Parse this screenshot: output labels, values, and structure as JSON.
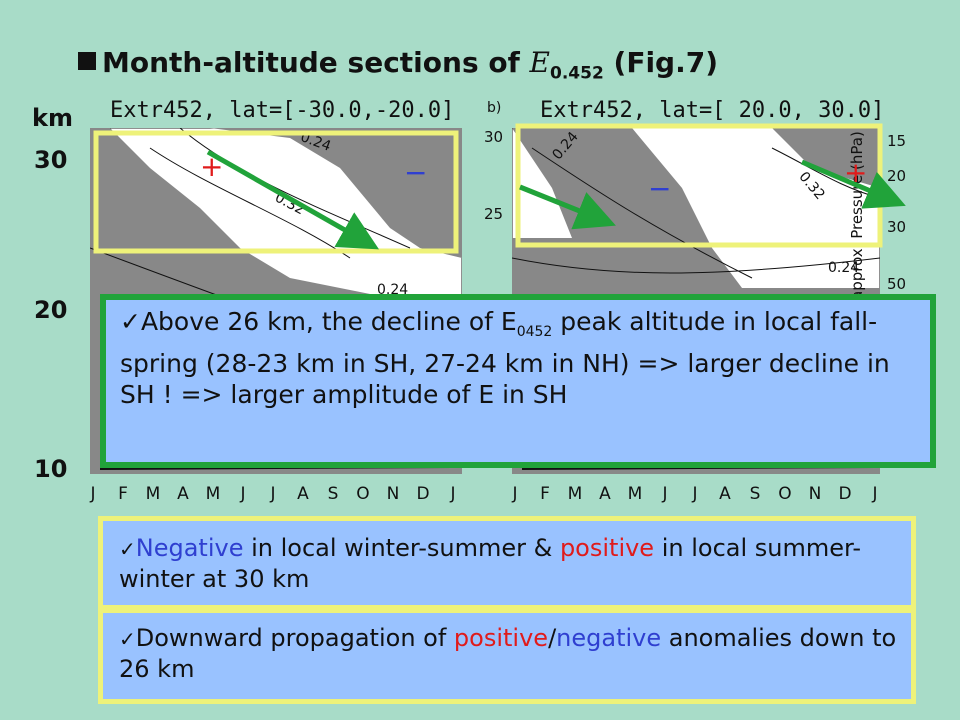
{
  "title": {
    "prefix": "Month-altitude sections of ",
    "symbol": "E",
    "sub": "0.452",
    "suffix": " (Fig.7)"
  },
  "left_axis": {
    "unit": "km",
    "ticks": [
      "30",
      "20",
      "10"
    ]
  },
  "panel_a": {
    "title": "Extr452, lat=[-30.0,-20.0]",
    "labels": [
      "0.24",
      "0.32",
      "0.24"
    ],
    "plus": "+",
    "minus": "−"
  },
  "panel_b": {
    "letter": "b)",
    "title": "Extr452, lat=[ 20.0, 30.0]",
    "left_ticks": [
      "30",
      "25"
    ],
    "right_ticks": [
      "15",
      "20",
      "30",
      "50"
    ],
    "right_label": "approx. Pressure (hPa)",
    "labels": [
      "0.24",
      "0.32",
      "0.24"
    ],
    "plus": "+",
    "minus": "−"
  },
  "months": [
    "J",
    "F",
    "M",
    "A",
    "M",
    "J",
    "J",
    "A",
    "S",
    "O",
    "N",
    "D",
    "J"
  ],
  "callout": {
    "part1": "Above 26 km, the decline of E",
    "part1_sub": "0452",
    "part2": " peak altitude in local fall-spring (28-23 km in SH, 27-24 km in NH) => larger decline in SH ! => larger amplitude of E in SH"
  },
  "box1": {
    "neg": "Negative",
    "t1": " in local winter-summer & ",
    "pos": "positive",
    "t2": " in local summer-winter at 30 km"
  },
  "box2": {
    "t1": "Downward propagation of ",
    "pos": "positive",
    "slash": "/",
    "neg": "negative",
    "t2": " anomalies down to 26 km"
  },
  "colors": {
    "background": "#a8dcc8",
    "shade": "#888888",
    "yellow": "#eef27a",
    "green": "#21a33a",
    "callout_bg": "#99c2ff",
    "red": "#e01b1b",
    "blue": "#2f3fd0"
  }
}
